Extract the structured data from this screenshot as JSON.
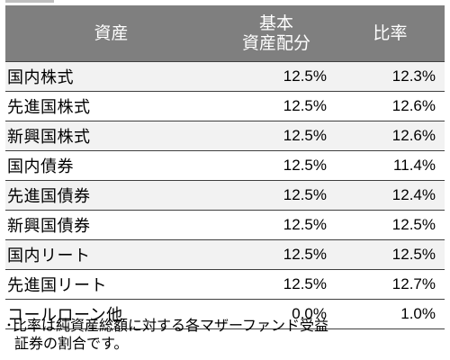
{
  "table": {
    "headers": {
      "asset": "資産",
      "base_line1": "基本",
      "base_line2": "資産配分",
      "ratio": "比率"
    },
    "rows": [
      {
        "asset": "国内株式",
        "base": "12.5%",
        "ratio": "12.3%"
      },
      {
        "asset": "先進国株式",
        "base": "12.5%",
        "ratio": "12.6%"
      },
      {
        "asset": "新興国株式",
        "base": "12.5%",
        "ratio": "12.6%"
      },
      {
        "asset": "国内債券",
        "base": "12.5%",
        "ratio": "11.4%"
      },
      {
        "asset": "先進国債券",
        "base": "12.5%",
        "ratio": "12.4%"
      },
      {
        "asset": "新興国債券",
        "base": "12.5%",
        "ratio": "12.5%"
      },
      {
        "asset": "国内リート",
        "base": "12.5%",
        "ratio": "12.5%"
      },
      {
        "asset": "先進国リート",
        "base": "12.5%",
        "ratio": "12.7%"
      },
      {
        "asset": "コールローン他",
        "base": "0.0%",
        "ratio": "1.0%"
      }
    ]
  },
  "note": {
    "line1": "･比率は純資産総額に対する各マザーファンド受益",
    "line2": "証券の割合です。"
  },
  "colors": {
    "header_bg": "#7f7f7f",
    "header_text": "#ffffff",
    "stripe": "#f2f2f2",
    "rule": "#404040"
  }
}
